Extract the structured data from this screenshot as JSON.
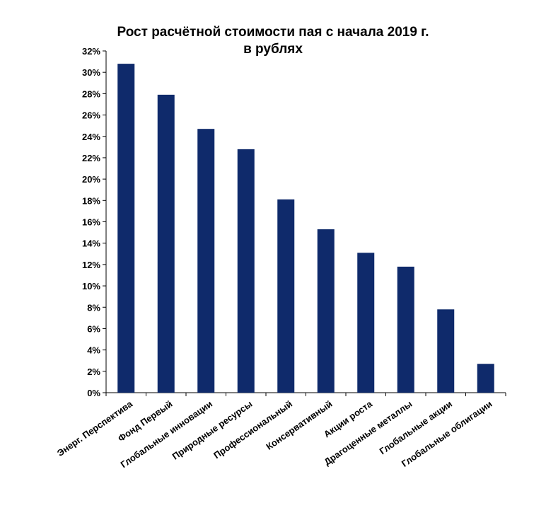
{
  "chart_data": {
    "type": "bar",
    "title_lines": [
      "Рост расчётной стоимости пая с начала 2019 г.",
      "в рублях"
    ],
    "categories": [
      "Энерг. Перспектива",
      "Фонд Первый",
      "Глобальные инновации",
      "Природные ресурсы",
      "Профессиональный",
      "Консервативный",
      "Акции роста",
      "Драгоценные металлы",
      "Глобальные акции",
      "Глобальные облигации"
    ],
    "values": [
      30.8,
      27.9,
      24.7,
      22.8,
      18.1,
      15.3,
      13.1,
      11.8,
      7.8,
      2.7
    ],
    "ylim": [
      0,
      32
    ],
    "ytick_step": 2,
    "yticks": [
      "0%",
      "2%",
      "4%",
      "6%",
      "8%",
      "10%",
      "12%",
      "14%",
      "16%",
      "18%",
      "20%",
      "22%",
      "24%",
      "26%",
      "28%",
      "30%",
      "32%"
    ],
    "xlabel": "",
    "ylabel": "",
    "grid": false,
    "bar_color": "#0F2A6B"
  }
}
